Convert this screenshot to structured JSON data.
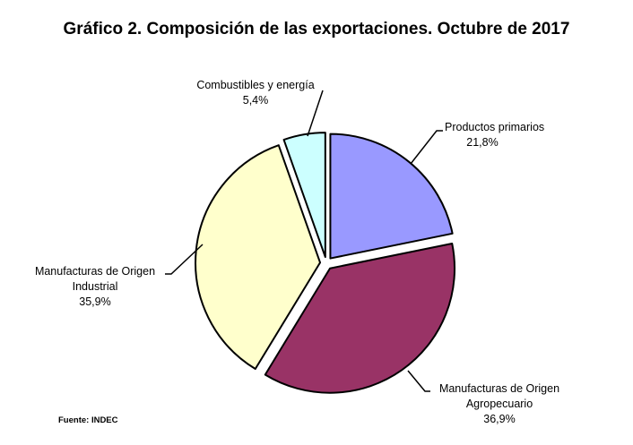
{
  "chart_data": {
    "type": "pie",
    "title": "Gráfico 2. Composición de las exportaciones. Octubre de 2017",
    "slices": [
      {
        "label": "Productos primarios",
        "value": 21.8,
        "value_label": "21,8%",
        "color": "#9999FF"
      },
      {
        "label": "Manufacturas de Origen Agropecuario",
        "label_lines": [
          "Manufacturas de Origen",
          "Agropecuario"
        ],
        "value": 36.9,
        "value_label": "36,9%",
        "color": "#993366"
      },
      {
        "label": "Manufacturas de Origen Industrial",
        "label_lines": [
          "Manufacturas de Origen",
          "Industrial"
        ],
        "value": 35.9,
        "value_label": "35,9%",
        "color": "#FFFFCC"
      },
      {
        "label": "Combustibles y energía",
        "value": 5.4,
        "value_label": "5,4%",
        "color": "#CCFFFF"
      }
    ],
    "start": "top",
    "direction": "clockwise",
    "exploded": true,
    "source": "Fuente: INDEC"
  }
}
